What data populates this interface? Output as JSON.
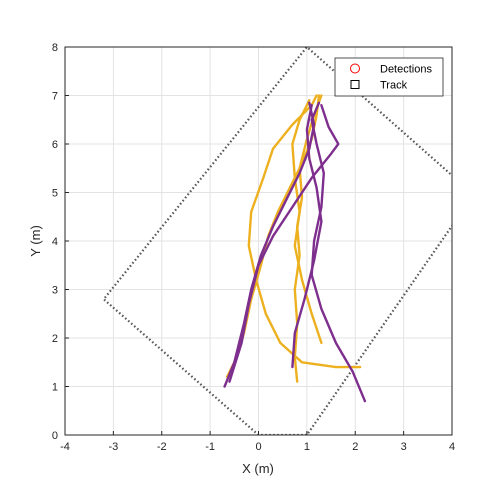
{
  "chart_data": {
    "type": "line",
    "xlabel": "X (m)",
    "ylabel": "Y (m)",
    "xlim": [
      -4,
      4
    ],
    "ylim": [
      0,
      8
    ],
    "xticks": [
      "-4",
      "-3",
      "-2",
      "-1",
      "0",
      "1",
      "2",
      "3",
      "4"
    ],
    "yticks": [
      "0",
      "1",
      "2",
      "3",
      "4",
      "5",
      "6",
      "7",
      "8"
    ],
    "grid": true,
    "legend_position": "top-right",
    "legend": [
      {
        "label": "Detections",
        "marker": "circle",
        "color": "#ff0000"
      },
      {
        "label": "Track",
        "marker": "square",
        "color": "#000000"
      }
    ],
    "sensor_boundary": {
      "style": "dotted",
      "color": "#595959",
      "points": [
        [
          4.4,
          5.0
        ],
        [
          1.0,
          8.0
        ],
        [
          -3.2,
          2.8
        ],
        [
          0.0,
          0.0
        ],
        [
          1.0,
          0.0
        ],
        [
          4.2,
          4.6
        ]
      ]
    },
    "series": [
      {
        "color": "#edb120",
        "points": [
          [
            -0.65,
            1.2
          ],
          [
            -0.45,
            1.6
          ],
          [
            -0.3,
            2.1
          ],
          [
            -0.15,
            2.8
          ],
          [
            0.05,
            3.5
          ],
          [
            0.2,
            4.1
          ],
          [
            0.4,
            4.6
          ],
          [
            0.65,
            5.1
          ],
          [
            0.9,
            5.6
          ],
          [
            1.1,
            6.1
          ],
          [
            1.2,
            6.6
          ],
          [
            1.25,
            7.0
          ]
        ]
      },
      {
        "color": "#edb120",
        "points": [
          [
            0.8,
            1.1
          ],
          [
            0.75,
            1.6
          ],
          [
            0.8,
            2.3
          ],
          [
            0.75,
            3.0
          ],
          [
            0.85,
            3.7
          ],
          [
            0.8,
            4.3
          ],
          [
            0.9,
            4.9
          ],
          [
            0.85,
            5.5
          ],
          [
            1.0,
            6.1
          ],
          [
            1.15,
            6.6
          ],
          [
            1.3,
            7.0
          ]
        ]
      },
      {
        "color": "#edb120",
        "points": [
          [
            2.1,
            1.4
          ],
          [
            1.6,
            1.4
          ],
          [
            0.9,
            1.5
          ],
          [
            0.45,
            1.9
          ],
          [
            0.15,
            2.5
          ],
          [
            -0.05,
            3.2
          ],
          [
            -0.2,
            3.9
          ],
          [
            -0.15,
            4.6
          ],
          [
            0.1,
            5.3
          ],
          [
            0.3,
            5.9
          ],
          [
            0.7,
            6.4
          ],
          [
            1.1,
            6.8
          ],
          [
            1.2,
            7.0
          ]
        ]
      },
      {
        "color": "#edb120",
        "points": [
          [
            1.3,
            1.9
          ],
          [
            1.1,
            2.5
          ],
          [
            0.9,
            3.2
          ],
          [
            0.75,
            3.9
          ],
          [
            0.85,
            4.6
          ],
          [
            0.75,
            5.3
          ],
          [
            0.7,
            6.0
          ],
          [
            0.85,
            6.5
          ],
          [
            1.05,
            6.9
          ]
        ]
      },
      {
        "color": "#7e2f8e",
        "points": [
          [
            -0.7,
            1.0
          ],
          [
            -0.5,
            1.5
          ],
          [
            -0.3,
            2.3
          ],
          [
            -0.15,
            3.0
          ],
          [
            0.05,
            3.7
          ],
          [
            0.3,
            4.3
          ],
          [
            0.6,
            4.9
          ],
          [
            0.85,
            5.4
          ],
          [
            1.05,
            5.9
          ],
          [
            1.15,
            6.4
          ],
          [
            1.05,
            6.85
          ]
        ]
      },
      {
        "color": "#7e2f8e",
        "points": [
          [
            2.2,
            0.7
          ],
          [
            1.95,
            1.3
          ],
          [
            1.6,
            1.9
          ],
          [
            1.3,
            2.6
          ],
          [
            1.1,
            3.3
          ],
          [
            1.15,
            4.0
          ],
          [
            1.3,
            4.7
          ],
          [
            1.35,
            5.4
          ],
          [
            1.2,
            6.0
          ],
          [
            1.1,
            6.5
          ],
          [
            1.25,
            6.85
          ]
        ]
      },
      {
        "color": "#7e2f8e",
        "points": [
          [
            0.7,
            1.4
          ],
          [
            0.75,
            2.1
          ],
          [
            0.95,
            2.8
          ],
          [
            1.15,
            3.6
          ],
          [
            1.3,
            4.4
          ],
          [
            1.2,
            5.1
          ],
          [
            1.05,
            5.7
          ],
          [
            1.0,
            6.3
          ],
          [
            1.1,
            6.8
          ]
        ]
      },
      {
        "color": "#7e2f8e",
        "points": [
          [
            -0.6,
            1.1
          ],
          [
            -0.35,
            1.9
          ],
          [
            -0.2,
            2.7
          ],
          [
            0.0,
            3.5
          ],
          [
            0.3,
            4.1
          ],
          [
            0.7,
            4.7
          ],
          [
            1.1,
            5.3
          ],
          [
            1.5,
            5.8
          ],
          [
            1.65,
            6.0
          ],
          [
            1.45,
            6.35
          ],
          [
            1.3,
            6.8
          ]
        ]
      }
    ]
  }
}
